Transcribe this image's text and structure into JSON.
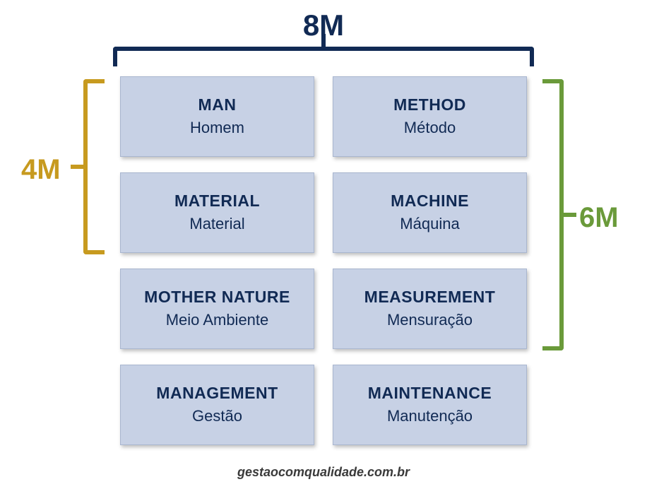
{
  "diagram": {
    "type": "infographic",
    "background_color": "#ffffff",
    "text_color": "#112a54",
    "card_bg": "#c7d1e5",
    "card_border": "#a9b6cf",
    "top": {
      "label": "8M",
      "bracket_color": "#112a54",
      "label_color": "#112a54",
      "label_fontsize": 42
    },
    "left": {
      "label": "4M",
      "bracket_color": "#c79a1f",
      "label_color": "#c79a1f",
      "label_fontsize": 40
    },
    "right": {
      "label": "6M",
      "bracket_color": "#6a9a3a",
      "label_color": "#6a9a3a",
      "label_fontsize": 40
    },
    "cards": [
      {
        "en": "MAN",
        "pt": "Homem"
      },
      {
        "en": "METHOD",
        "pt": "Método"
      },
      {
        "en": "MATERIAL",
        "pt": "Material"
      },
      {
        "en": "MACHINE",
        "pt": "Máquina"
      },
      {
        "en": "MOTHER NATURE",
        "pt": "Meio Ambiente"
      },
      {
        "en": "MEASUREMENT",
        "pt": "Mensuração"
      },
      {
        "en": "MANAGEMENT",
        "pt": "Gestão"
      },
      {
        "en": "MAINTENANCE",
        "pt": "Manutenção"
      }
    ],
    "card_en_fontsize": 23,
    "card_pt_fontsize": 22,
    "credit": "gestaocomqualidade.com.br",
    "credit_color": "#3a3a3a",
    "credit_fontsize": 18
  }
}
